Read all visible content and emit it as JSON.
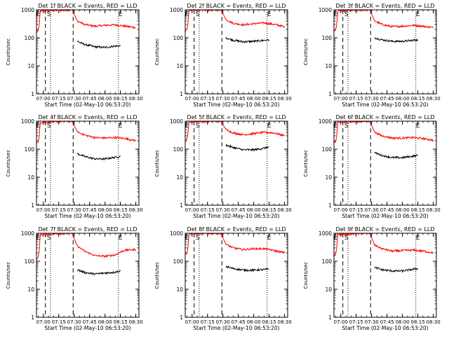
{
  "figure": {
    "common_xlabel": "Start Time (02-May-10 06:53:20)",
    "common_ylabel": "Counts/sec"
  },
  "chart_data": [
    {
      "type": "line",
      "title": "Det 1f BLACK = Events, RED = LLD",
      "xlabel": "Start Time (02-May-10 06:53:20)",
      "ylabel": "Counts/sec",
      "y_scale": "log",
      "ylim": [
        1,
        1000
      ],
      "xlim": [
        "06:53:20",
        "08:33:00"
      ],
      "x_ticks": [
        "07:00",
        "07:15",
        "07:30",
        "07:45",
        "08:00",
        "08:15",
        "08:30"
      ],
      "y_ticks": [
        "1",
        "10",
        "100",
        "1000"
      ],
      "markers": {
        "E_start": "06:55",
        "S": "07:02",
        "dashed": "07:29",
        "dotted": [
          "07:07",
          "08:13"
        ],
        "E_end": "08:15"
      },
      "series": [
        {
          "color": "#ff0000",
          "points": [
            [
              "06:53",
              150
            ],
            [
              "06:55",
              180
            ],
            [
              "06:56",
              300
            ],
            [
              "06:57",
              900
            ],
            [
              "07:28",
              1000
            ],
            [
              "07:33",
              400
            ],
            [
              "07:40",
              300
            ],
            [
              "07:50",
              260
            ],
            [
              "08:00",
              280
            ],
            [
              "08:10",
              290
            ],
            [
              "08:20",
              260
            ],
            [
              "08:30",
              230
            ]
          ]
        },
        {
          "color": "#000000",
          "points": [
            [
              "07:33",
              75
            ],
            [
              "07:40",
              58
            ],
            [
              "07:50",
              48
            ],
            [
              "08:00",
              45
            ],
            [
              "08:08",
              50
            ],
            [
              "08:15",
              52
            ]
          ]
        }
      ]
    },
    {
      "type": "line",
      "title": "Det 2f BLACK = Events, RED = LLD",
      "xlabel": "Start Time (02-May-10 06:53:20)",
      "ylabel": "Counts/sec",
      "y_scale": "log",
      "ylim": [
        1,
        1000
      ],
      "xlim": [
        "06:53:20",
        "08:33:00"
      ],
      "x_ticks": [
        "07:00",
        "07:15",
        "07:30",
        "07:45",
        "08:00",
        "08:15",
        "08:30"
      ],
      "y_ticks": [
        "1",
        "10",
        "100",
        "1000"
      ],
      "markers": {
        "E_start": "06:55",
        "S": "07:02",
        "dashed": "07:29",
        "dotted": [
          "07:07",
          "08:13"
        ],
        "E_end": "08:15"
      },
      "series": [
        {
          "color": "#ff0000",
          "points": [
            [
              "06:53",
              170
            ],
            [
              "06:55",
              200
            ],
            [
              "06:56",
              320
            ],
            [
              "06:57",
              950
            ],
            [
              "07:28",
              1000
            ],
            [
              "07:33",
              450
            ],
            [
              "07:40",
              330
            ],
            [
              "07:50",
              290
            ],
            [
              "08:00",
              320
            ],
            [
              "08:10",
              340
            ],
            [
              "08:20",
              300
            ],
            [
              "08:30",
              250
            ]
          ]
        },
        {
          "color": "#000000",
          "points": [
            [
              "07:33",
              100
            ],
            [
              "07:40",
              82
            ],
            [
              "07:50",
              72
            ],
            [
              "08:00",
              75
            ],
            [
              "08:08",
              80
            ],
            [
              "08:15",
              85
            ]
          ]
        }
      ]
    },
    {
      "type": "line",
      "title": "Det 3f BLACK = Events, RED = LLD",
      "xlabel": "Start Time (02-May-10 06:53:20)",
      "ylabel": "Counts/sec",
      "y_scale": "log",
      "ylim": [
        1,
        1000
      ],
      "xlim": [
        "06:53:20",
        "08:33:00"
      ],
      "x_ticks": [
        "07:00",
        "07:15",
        "07:30",
        "07:45",
        "08:00",
        "08:15",
        "08:30"
      ],
      "y_ticks": [
        "1",
        "10",
        "100",
        "1000"
      ],
      "markers": {
        "E_start": "06:55",
        "S": "07:02",
        "dashed": "07:29",
        "dotted": [
          "07:07",
          "08:13"
        ],
        "E_end": "08:15"
      },
      "series": [
        {
          "color": "#ff0000",
          "points": [
            [
              "06:53",
              160
            ],
            [
              "06:55",
              190
            ],
            [
              "06:56",
              300
            ],
            [
              "06:57",
              900
            ],
            [
              "07:28",
              1000
            ],
            [
              "07:33",
              400
            ],
            [
              "07:40",
              300
            ],
            [
              "07:50",
              250
            ],
            [
              "08:00",
              260
            ],
            [
              "08:10",
              280
            ],
            [
              "08:20",
              260
            ],
            [
              "08:30",
              230
            ]
          ]
        },
        {
          "color": "#000000",
          "points": [
            [
              "07:33",
              100
            ],
            [
              "07:40",
              85
            ],
            [
              "07:50",
              75
            ],
            [
              "08:00",
              75
            ],
            [
              "08:08",
              80
            ],
            [
              "08:15",
              85
            ]
          ]
        }
      ]
    },
    {
      "type": "line",
      "title": "Det 4f BLACK = Events, RED = LLD",
      "xlabel": "Start Time (02-May-10 06:53:20)",
      "ylabel": "Counts/sec",
      "y_scale": "log",
      "ylim": [
        1,
        1000
      ],
      "xlim": [
        "06:53:20",
        "08:33:00"
      ],
      "x_ticks": [
        "07:00",
        "07:15",
        "07:30",
        "07:45",
        "08:00",
        "08:15",
        "08:30"
      ],
      "y_ticks": [
        "1",
        "10",
        "100",
        "1000"
      ],
      "markers": {
        "E_start": "06:55",
        "S": "07:02",
        "dashed": "07:29",
        "dotted": [
          "07:07",
          "08:13"
        ],
        "E_end": "08:15"
      },
      "series": [
        {
          "color": "#ff0000",
          "points": [
            [
              "06:53",
              150
            ],
            [
              "06:55",
              180
            ],
            [
              "06:56",
              300
            ],
            [
              "06:57",
              900
            ],
            [
              "07:28",
              1000
            ],
            [
              "07:33",
              420
            ],
            [
              "07:40",
              320
            ],
            [
              "07:50",
              260
            ],
            [
              "08:00",
              250
            ],
            [
              "08:10",
              260
            ],
            [
              "08:20",
              240
            ],
            [
              "08:30",
              200
            ]
          ]
        },
        {
          "color": "#000000",
          "points": [
            [
              "07:33",
              70
            ],
            [
              "07:40",
              55
            ],
            [
              "07:50",
              45
            ],
            [
              "08:00",
              45
            ],
            [
              "08:08",
              50
            ],
            [
              "08:15",
              55
            ]
          ]
        }
      ]
    },
    {
      "type": "line",
      "title": "Det 5f BLACK = Events, RED = LLD",
      "xlabel": "Start Time (02-May-10 06:53:20)",
      "ylabel": "Counts/sec",
      "y_scale": "log",
      "ylim": [
        1,
        1000
      ],
      "xlim": [
        "06:53:20",
        "08:33:00"
      ],
      "x_ticks": [
        "07:00",
        "07:15",
        "07:30",
        "07:45",
        "08:00",
        "08:15",
        "08:30"
      ],
      "y_ticks": [
        "1",
        "10",
        "100",
        "1000"
      ],
      "markers": {
        "E_start": "06:55",
        "S": "07:02",
        "dashed": "07:29",
        "dotted": [
          "07:07",
          "08:13"
        ],
        "E_end": "08:15"
      },
      "series": [
        {
          "color": "#ff0000",
          "points": [
            [
              "06:53",
              200
            ],
            [
              "06:55",
              230
            ],
            [
              "06:56",
              380
            ],
            [
              "06:57",
              950
            ],
            [
              "07:28",
              1000
            ],
            [
              "07:33",
              500
            ],
            [
              "07:40",
              380
            ],
            [
              "07:50",
              330
            ],
            [
              "08:00",
              360
            ],
            [
              "08:10",
              400
            ],
            [
              "08:20",
              380
            ],
            [
              "08:30",
              300
            ]
          ]
        },
        {
          "color": "#000000",
          "points": [
            [
              "07:33",
              140
            ],
            [
              "07:40",
              115
            ],
            [
              "07:50",
              95
            ],
            [
              "08:00",
              95
            ],
            [
              "08:08",
              105
            ],
            [
              "08:15",
              120
            ]
          ]
        }
      ]
    },
    {
      "type": "line",
      "title": "Det 6f BLACK = Events, RED = LLD",
      "xlabel": "Start Time (02-May-10 06:53:20)",
      "ylabel": "Counts/sec",
      "y_scale": "log",
      "ylim": [
        1,
        1000
      ],
      "xlim": [
        "06:53:20",
        "08:33:00"
      ],
      "x_ticks": [
        "07:00",
        "07:15",
        "07:30",
        "07:45",
        "08:00",
        "08:15",
        "08:30"
      ],
      "y_ticks": [
        "1",
        "10",
        "100",
        "1000"
      ],
      "markers": {
        "E_start": "06:55",
        "S": "07:02",
        "dashed": "07:29",
        "dotted": [
          "07:07",
          "08:13"
        ],
        "E_end": "08:15"
      },
      "series": [
        {
          "color": "#ff0000",
          "points": [
            [
              "06:53",
              150
            ],
            [
              "06:55",
              180
            ],
            [
              "06:56",
              300
            ],
            [
              "06:57",
              900
            ],
            [
              "07:28",
              1000
            ],
            [
              "07:33",
              400
            ],
            [
              "07:40",
              300
            ],
            [
              "07:50",
              250
            ],
            [
              "08:00",
              250
            ],
            [
              "08:10",
              260
            ],
            [
              "08:20",
              240
            ],
            [
              "08:30",
              210
            ]
          ]
        },
        {
          "color": "#000000",
          "points": [
            [
              "07:33",
              75
            ],
            [
              "07:40",
              60
            ],
            [
              "07:50",
              50
            ],
            [
              "08:00",
              50
            ],
            [
              "08:08",
              55
            ],
            [
              "08:15",
              60
            ]
          ]
        }
      ]
    },
    {
      "type": "line",
      "title": "Det 7f BLACK = Events, RED = LLD",
      "xlabel": "Start Time (02-May-10 06:53:20)",
      "ylabel": "Counts/sec",
      "y_scale": "log",
      "ylim": [
        1,
        1000
      ],
      "xlim": [
        "06:53:20",
        "08:33:00"
      ],
      "x_ticks": [
        "07:00",
        "07:15",
        "07:30",
        "07:45",
        "08:00",
        "08:15",
        "08:30"
      ],
      "y_ticks": [
        "1",
        "10",
        "100",
        "1000"
      ],
      "markers": {
        "E_start": "06:55",
        "S": "07:02",
        "dashed": "07:29",
        "dotted": [
          "07:07",
          "08:13"
        ],
        "E_end": "08:15"
      },
      "series": [
        {
          "color": "#ff0000",
          "points": [
            [
              "06:53",
              110
            ],
            [
              "06:55",
              140
            ],
            [
              "06:56",
              250
            ],
            [
              "06:57",
              900
            ],
            [
              "07:28",
              1000
            ],
            [
              "07:33",
              350
            ],
            [
              "07:40",
              230
            ],
            [
              "07:50",
              160
            ],
            [
              "08:00",
              150
            ],
            [
              "08:10",
              170
            ],
            [
              "08:16",
              220
            ],
            [
              "08:20",
              250
            ],
            [
              "08:30",
              260
            ]
          ]
        },
        {
          "color": "#000000",
          "points": [
            [
              "07:33",
              50
            ],
            [
              "07:40",
              40
            ],
            [
              "07:50",
              35
            ],
            [
              "08:00",
              38
            ],
            [
              "08:08",
              40
            ],
            [
              "08:15",
              45
            ]
          ]
        }
      ]
    },
    {
      "type": "line",
      "title": "Det 8f BLACK = Events, RED = LLD",
      "xlabel": "Start Time (02-May-10 06:53:20)",
      "ylabel": "Counts/sec",
      "y_scale": "log",
      "ylim": [
        1,
        1000
      ],
      "xlim": [
        "06:53:20",
        "08:33:00"
      ],
      "x_ticks": [
        "07:00",
        "07:15",
        "07:30",
        "07:45",
        "08:00",
        "08:15",
        "08:30"
      ],
      "y_ticks": [
        "1",
        "10",
        "100",
        "1000"
      ],
      "markers": {
        "E_start": "06:55",
        "S": "07:02",
        "dashed": "07:29",
        "dotted": [
          "07:07",
          "08:13"
        ],
        "E_end": "08:15"
      },
      "series": [
        {
          "color": "#ff0000",
          "points": [
            [
              "06:53",
              160
            ],
            [
              "06:55",
              190
            ],
            [
              "06:56",
              320
            ],
            [
              "06:57",
              950
            ],
            [
              "07:28",
              1000
            ],
            [
              "07:33",
              400
            ],
            [
              "07:40",
              300
            ],
            [
              "07:50",
              260
            ],
            [
              "08:00",
              280
            ],
            [
              "08:10",
              280
            ],
            [
              "08:20",
              240
            ],
            [
              "08:30",
              200
            ]
          ]
        },
        {
          "color": "#000000",
          "points": [
            [
              "07:33",
              65
            ],
            [
              "07:40",
              55
            ],
            [
              "07:50",
              48
            ],
            [
              "08:00",
              48
            ],
            [
              "08:08",
              50
            ],
            [
              "08:15",
              52
            ]
          ]
        }
      ]
    },
    {
      "type": "line",
      "title": "Det 9f BLACK = Events, RED = LLD",
      "xlabel": "Start Time (02-May-10 06:53:20)",
      "ylabel": "Counts/sec",
      "y_scale": "log",
      "ylim": [
        1,
        1000
      ],
      "xlim": [
        "06:53:20",
        "08:33:00"
      ],
      "x_ticks": [
        "07:00",
        "07:15",
        "07:30",
        "07:45",
        "08:00",
        "08:15",
        "08:30"
      ],
      "y_ticks": [
        "1",
        "10",
        "100",
        "1000"
      ],
      "markers": {
        "E_start": "06:55",
        "S": "07:02",
        "dashed": "07:29",
        "dotted": [
          "07:07",
          "08:13"
        ],
        "E_end": "08:15"
      },
      "series": [
        {
          "color": "#ff0000",
          "points": [
            [
              "06:53",
              150
            ],
            [
              "06:55",
              180
            ],
            [
              "06:56",
              300
            ],
            [
              "06:57",
              900
            ],
            [
              "07:28",
              1000
            ],
            [
              "07:33",
              380
            ],
            [
              "07:40",
              280
            ],
            [
              "07:50",
              230
            ],
            [
              "08:00",
              240
            ],
            [
              "08:10",
              250
            ],
            [
              "08:20",
              230
            ],
            [
              "08:30",
              200
            ]
          ]
        },
        {
          "color": "#000000",
          "points": [
            [
              "07:33",
              60
            ],
            [
              "07:40",
              50
            ],
            [
              "07:50",
              45
            ],
            [
              "08:00",
              45
            ],
            [
              "08:08",
              50
            ],
            [
              "08:15",
              55
            ]
          ]
        }
      ]
    }
  ]
}
